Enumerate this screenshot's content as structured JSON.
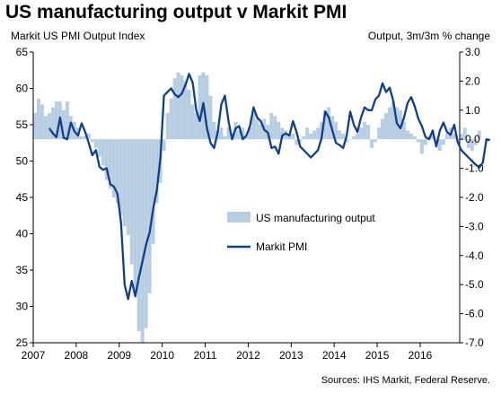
{
  "chart_data": {
    "type": "bar",
    "title": "US manufacturing output v Markit PMI",
    "left_axis_label": "Markit US PMI Output Index",
    "right_axis_label": "Output, 3m/3m % change",
    "source": "Sources: IHS Markit, Federal Reserve.",
    "x_ticks": [
      "2007",
      "2008",
      "2009",
      "2010",
      "2011",
      "2012",
      "2013",
      "2014",
      "2015",
      "2016"
    ],
    "x_range": [
      2007.0,
      2016.92
    ],
    "left_ylim": [
      25,
      65
    ],
    "left_ticks": [
      "25",
      "30",
      "35",
      "40",
      "45",
      "50",
      "55",
      "60",
      "65"
    ],
    "right_ylim": [
      -7.0,
      3.0
    ],
    "right_ticks": [
      "-7.0",
      "-6.0",
      "-5.0",
      "-4.0",
      "-3.0",
      "-2.0",
      "-1.0",
      "0.0",
      "1.0",
      "2.0",
      "3.0"
    ],
    "grid": false,
    "legend_position": "center-right",
    "series": [
      {
        "name": "US manufacturing output",
        "axis": "right",
        "kind": "bar",
        "color": "#b7cde2",
        "start": [
          2007,
          1
        ],
        "values": [
          0.9,
          1.4,
          1.2,
          0.8,
          0.9,
          1.1,
          1.3,
          1.3,
          1.0,
          1.3,
          0.8,
          0.6,
          0.4,
          0.1,
          0.1,
          0.2,
          -0.1,
          -0.3,
          -0.6,
          -0.9,
          -1.4,
          -1.7,
          -2.0,
          -2.2,
          -2.6,
          -3.0,
          -3.3,
          -4.3,
          -5.3,
          -6.6,
          -7.0,
          -6.5,
          -5.3,
          -3.6,
          -2.2,
          -1.5,
          -0.4,
          0.9,
          1.4,
          2.1,
          2.3,
          2.2,
          2.0,
          1.7,
          1.2,
          0.9,
          2.2,
          2.3,
          2.2,
          1.5,
          0.6,
          0.3,
          0.4,
          0.1,
          0.4,
          0.2,
          0.6,
          0.3,
          0.4,
          0.1,
          0.4,
          0.9,
          0.7,
          0.5,
          0.7,
          0.5,
          0.9,
          0.8,
          0.6,
          0.4,
          0.3,
          0.2,
          0.2,
          -0.2,
          -0.1,
          0.1,
          0.4,
          0.2,
          0.3,
          0.4,
          0.6,
          1.0,
          1.1,
          0.8,
          0.6,
          0.3,
          0.2,
          -0.1,
          0.0,
          0.1,
          0.2,
          0.4,
          0.6,
          0.5,
          -0.3,
          -0.1,
          0.4,
          0.7,
          0.9,
          1.1,
          1.3,
          1.1,
          1.0,
          0.6,
          0.3,
          0.2,
          0.1,
          -0.1,
          -0.5,
          -0.2,
          0.1,
          0.3,
          -0.1,
          -0.4,
          -0.2,
          0.2,
          0.4,
          0.2,
          -0.1,
          0.2,
          0.4,
          -0.3,
          -0.4,
          -0.2,
          0.3
        ]
      },
      {
        "name": "Markit PMI",
        "axis": "left",
        "kind": "line",
        "color": "#103f8c",
        "start": [
          2007,
          5
        ],
        "values": [
          54.5,
          53.8,
          53.3,
          56.0,
          53.2,
          53.0,
          55.3,
          54.1,
          53.5,
          55.2,
          54.0,
          52.5,
          50.8,
          51.5,
          49.2,
          48.8,
          49.0,
          46.8,
          46.5,
          45.5,
          41.5,
          33.0,
          31.0,
          33.5,
          31.4,
          34.0,
          36.2,
          38.5,
          40.2,
          43.5,
          46.0,
          50.5,
          59.0,
          59.5,
          60.0,
          59.2,
          58.8,
          59.3,
          60.5,
          62.0,
          60.8,
          57.0,
          55.5,
          58.0,
          54.5,
          52.5,
          51.8,
          54.0,
          57.8,
          59.0,
          55.5,
          53.0,
          54.5,
          54.8,
          53.0,
          53.5,
          54.8,
          57.4,
          56.0,
          55.5,
          54.3,
          53.9,
          51.8,
          52.0,
          51.0,
          53.5,
          53.8,
          53.5,
          55.5,
          54.0,
          52.0,
          51.5,
          51.0,
          50.5,
          51.0,
          51.5,
          53.2,
          56.8,
          56.0,
          54.2,
          52.5,
          52.2,
          51.8,
          53.5,
          56.8,
          55.0,
          54.0,
          56.0,
          57.4,
          57.0,
          57.0,
          58.5,
          59.0,
          60.7,
          59.5,
          60.1,
          58.3,
          55.2,
          54.5,
          56.0,
          58.0,
          58.8,
          57.5,
          55.8,
          54.8,
          53.3,
          53.0,
          54.2,
          52.0,
          54.2,
          55.3,
          54.0,
          53.6,
          55.0,
          52.6,
          51.5,
          51.0,
          50.5,
          50.0,
          49.5,
          49.1,
          49.8,
          53.0,
          52.9
        ]
      }
    ]
  }
}
